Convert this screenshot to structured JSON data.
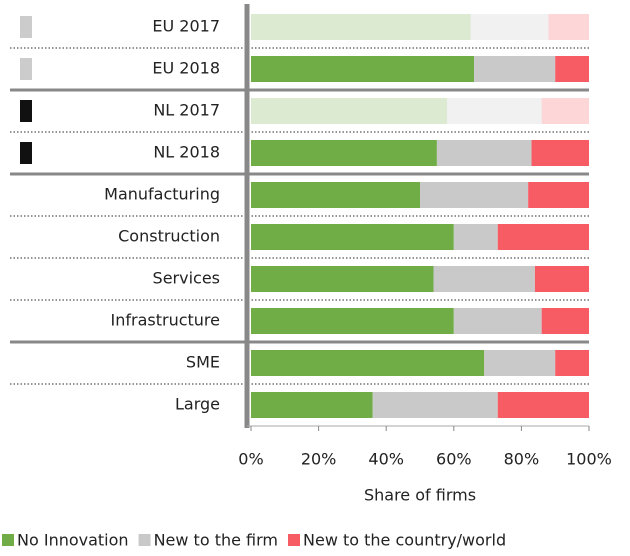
{
  "chart_data": {
    "type": "stacked_bar_horizontal",
    "xlabel": "Share of firms",
    "categories": [
      "EU 2017",
      "EU 2018",
      "NL 2017",
      "NL 2018",
      "Manufacturing",
      "Construction",
      "Services",
      "Infrastructure",
      "SME",
      "Large"
    ],
    "category_opacity": [
      0.25,
      1,
      0.25,
      1,
      1,
      1,
      1,
      1,
      1,
      1
    ],
    "category_markers": [
      "#cccccc",
      "#cccccc",
      "#111111",
      "#111111",
      null,
      null,
      null,
      null,
      null,
      null
    ],
    "groups": [
      2,
      2,
      4,
      2
    ],
    "series": [
      {
        "name": "No Innovation",
        "color": "#70ad47",
        "values": [
          65,
          66,
          58,
          55,
          50,
          60,
          54,
          60,
          69,
          36
        ]
      },
      {
        "name": "New to the firm",
        "color": "#c9c9c9",
        "values": [
          23,
          24,
          28,
          28,
          32,
          13,
          30,
          26,
          21,
          37
        ]
      },
      {
        "name": "New to the country/world",
        "color": "#f75c65",
        "values": [
          12,
          10,
          14,
          17,
          18,
          27,
          16,
          14,
          10,
          27
        ]
      }
    ],
    "xlim": [
      0,
      100
    ],
    "xticks": [
      {
        "value": 0,
        "label": "0%"
      },
      {
        "value": 20,
        "label": "20%"
      },
      {
        "value": 40,
        "label": "40%"
      },
      {
        "value": 60,
        "label": "60%"
      },
      {
        "value": 80,
        "label": "80%"
      },
      {
        "value": 100,
        "label": "100%"
      }
    ],
    "legend": "bottom"
  }
}
